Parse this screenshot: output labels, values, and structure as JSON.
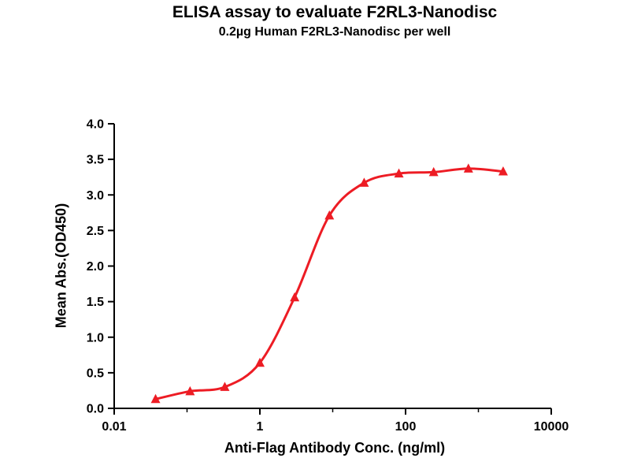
{
  "chart_data": {
    "type": "line",
    "title": "ELISA assay to evaluate F2RL3-Nanodisc",
    "subtitle": "0.2µg Human F2RL3-Nanodisc per well",
    "xlabel": "Anti-Flag Antibody Conc. (ng/ml)",
    "ylabel": "Mean Abs.(OD450)",
    "xscale": "log",
    "xlim": [
      0.01,
      10000
    ],
    "ylim": [
      0.0,
      4.0
    ],
    "x": [
      0.037,
      0.11,
      0.33,
      1.0,
      3.0,
      9.0,
      27.0,
      81.0,
      243.0,
      729.0,
      2187.0
    ],
    "y": [
      0.13,
      0.24,
      0.3,
      0.64,
      1.56,
      2.71,
      3.17,
      3.3,
      3.32,
      3.37,
      3.33
    ],
    "x_major_ticks": [
      0.01,
      1,
      100,
      10000
    ],
    "x_major_tick_labels": [
      "0.01",
      "1",
      "100",
      "10000"
    ],
    "x_minor_ticks": [
      0.1,
      10,
      1000
    ],
    "y_ticks": [
      0.0,
      0.5,
      1.0,
      1.5,
      2.0,
      2.5,
      3.0,
      3.5,
      4.0
    ],
    "y_tick_labels": [
      "0.0",
      "0.5",
      "1.0",
      "1.5",
      "2.0",
      "2.5",
      "3.0",
      "3.5",
      "4.0"
    ],
    "marker": "triangle-up",
    "line_color": "#ED1C24",
    "marker_color": "#ED1C24",
    "axis_color": "#000000",
    "grid": false,
    "legend": null
  }
}
